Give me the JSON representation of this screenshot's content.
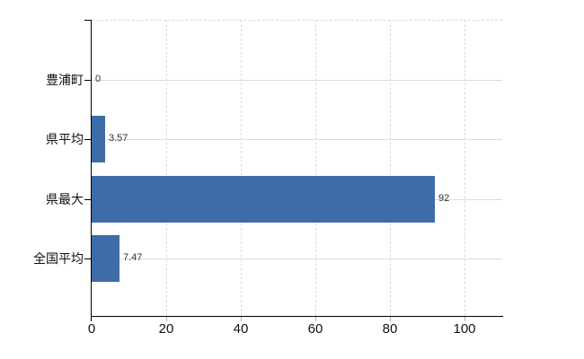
{
  "chart_data": {
    "type": "bar",
    "orientation": "horizontal",
    "title": "",
    "xlabel": "",
    "ylabel": "",
    "categories": [
      "豊浦町",
      "県平均",
      "県最大",
      "全国平均"
    ],
    "values": [
      0,
      3.57,
      92,
      7.47
    ],
    "value_labels": [
      "0",
      "3.57",
      "92",
      "7.47"
    ],
    "x_ticks": [
      0,
      20,
      40,
      60,
      80,
      100
    ],
    "x_tick_labels": [
      "0",
      "20",
      "40",
      "60",
      "80",
      "100"
    ],
    "xlim": [
      0,
      110
    ],
    "grid": true,
    "legend": "none",
    "colors": {
      "bar": "#3d6ca6",
      "grid": "#d8ddd8",
      "axis": "#000000",
      "value_label": "#333333",
      "background": "#ffffff"
    }
  }
}
